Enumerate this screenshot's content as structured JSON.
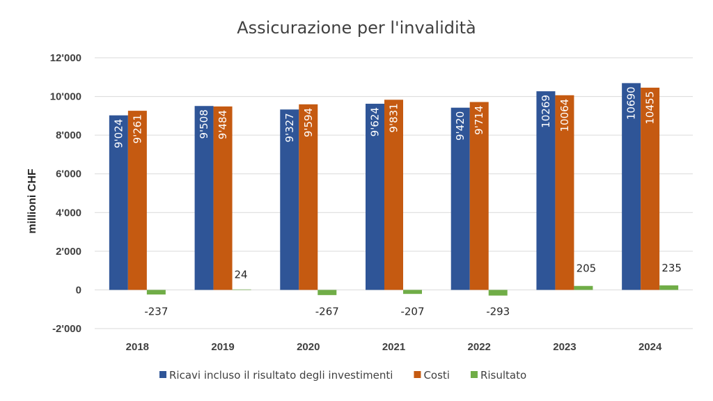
{
  "chart_data": {
    "type": "bar",
    "title": "Assicurazione per l'invalidità",
    "ylabel": "millioni CHF",
    "xlabel": "",
    "categories": [
      "2018",
      "2019",
      "2020",
      "2021",
      "2022",
      "2023",
      "2024"
    ],
    "ylim": [
      -2000,
      12000
    ],
    "yticks": [
      -2000,
      0,
      2000,
      4000,
      6000,
      8000,
      10000,
      12000
    ],
    "ytick_labels": [
      "-2'000",
      "0",
      "2'000",
      "4'000",
      "6'000",
      "8'000",
      "10'000",
      "12'000"
    ],
    "grid": true,
    "legend_position": "bottom",
    "series": [
      {
        "name": "Ricavi incluso il risultato degli investimenti",
        "color": "#2f5597",
        "values": [
          9024,
          9508,
          9327,
          9624,
          9420,
          10269,
          10690
        ],
        "labels": [
          "9'024",
          "9'508",
          "9'327",
          "9'624",
          "9'420",
          "10269",
          "10690"
        ]
      },
      {
        "name": "Costi",
        "color": "#c55a11",
        "values": [
          9261,
          9484,
          9594,
          9831,
          9714,
          10064,
          10455
        ],
        "labels": [
          "9'261",
          "9'484",
          "9'594",
          "9'831",
          "9'714",
          "10064",
          "10455"
        ]
      },
      {
        "name": "Risultato",
        "color": "#70ad47",
        "values": [
          -237,
          24,
          -267,
          -207,
          -293,
          205,
          235
        ],
        "labels": [
          "-237",
          "24",
          "-267",
          "-207",
          "-293",
          "205",
          "235"
        ]
      }
    ]
  }
}
